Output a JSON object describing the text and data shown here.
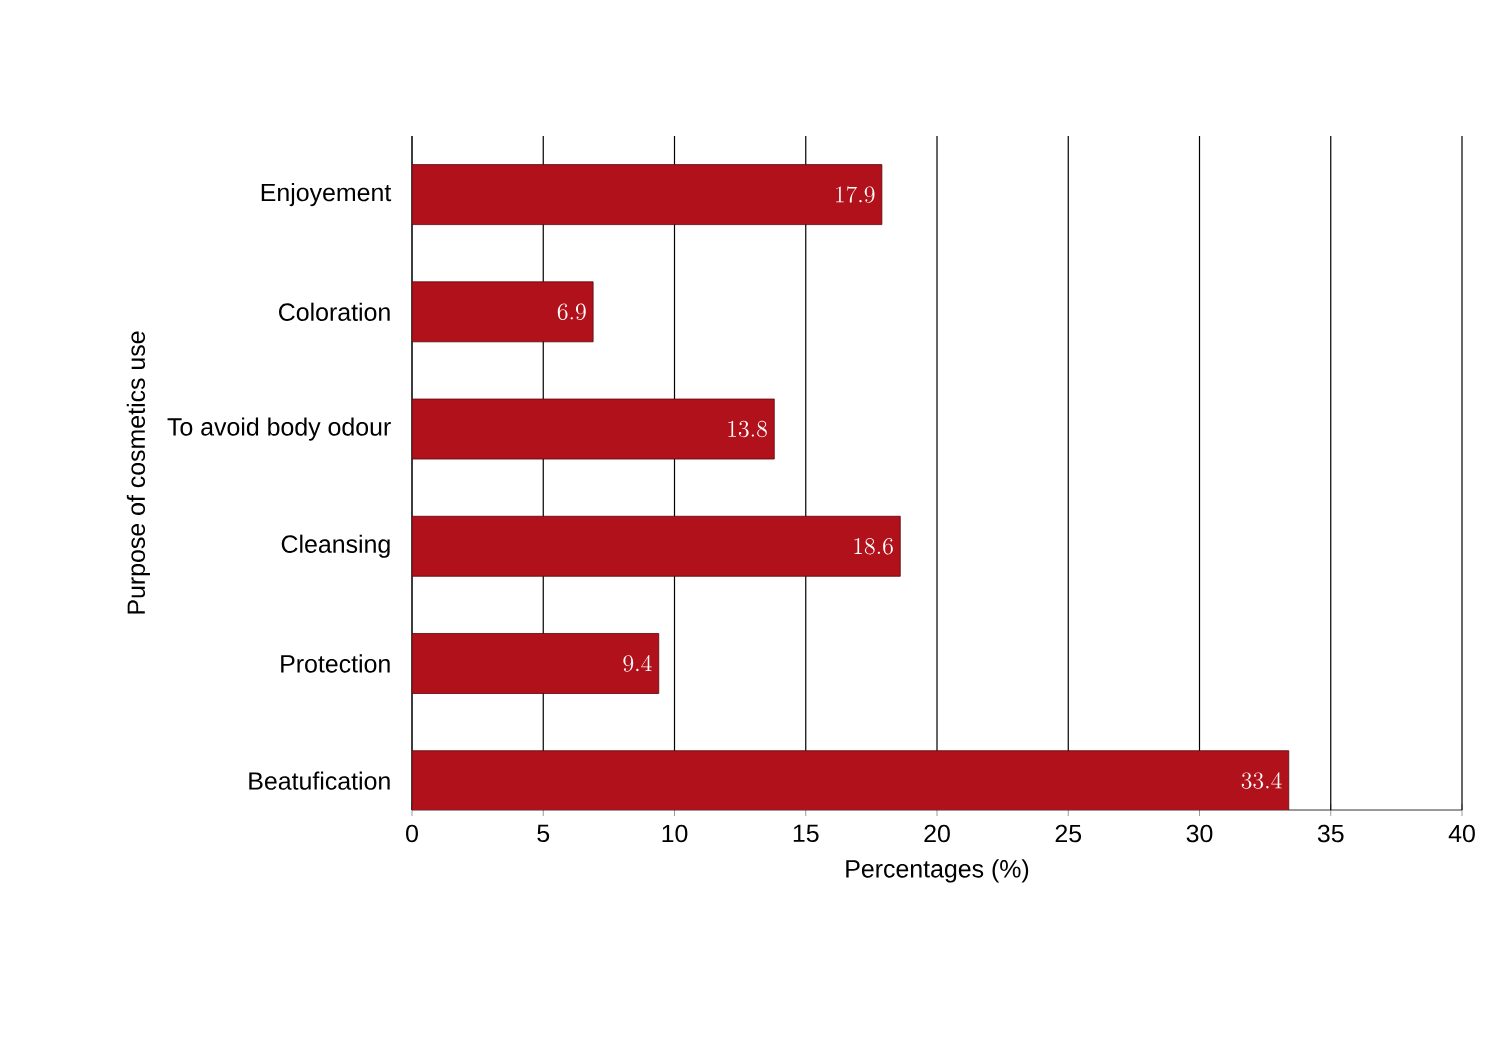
{
  "chart_data": {
    "type": "bar",
    "orientation": "horizontal",
    "categories": [
      "Enjoyement",
      "Coloration",
      "To avoid body odour",
      "Cleansing",
      "Protection",
      "Beatufication"
    ],
    "values": [
      17.9,
      6.9,
      13.8,
      18.6,
      9.4,
      33.4
    ],
    "color": "#b0111a",
    "xlim": [
      0,
      40
    ],
    "xticks": [
      0,
      5,
      10,
      15,
      20,
      25,
      30,
      35,
      40
    ],
    "xlabel": "Percentages (%)",
    "ylabel": "Purpose of cosmetics use",
    "grid": "x",
    "data_labels": true
  }
}
